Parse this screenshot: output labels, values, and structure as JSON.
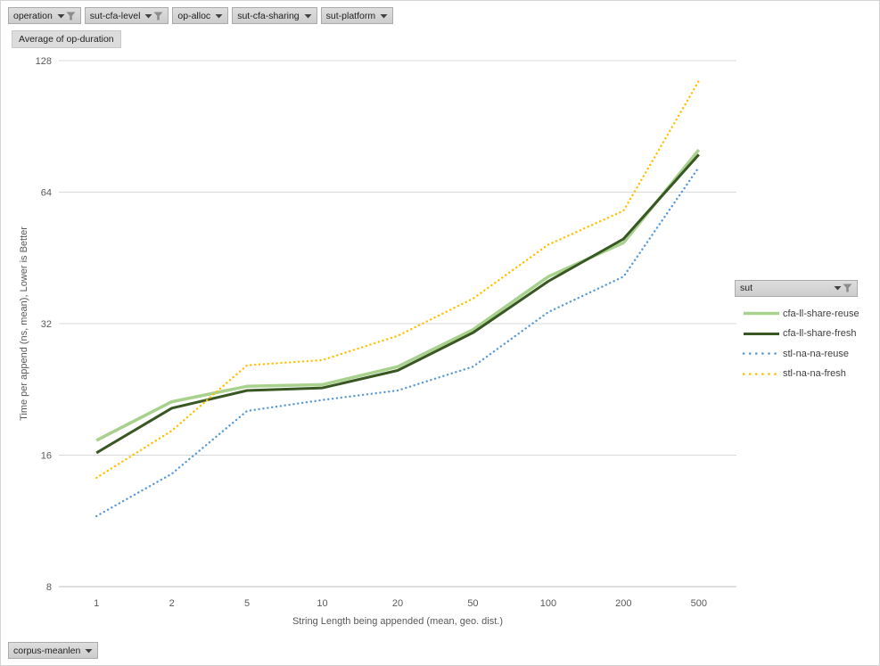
{
  "filters_top": [
    {
      "label": "operation",
      "filtered": true
    },
    {
      "label": "sut-cfa-level",
      "filtered": true
    },
    {
      "label": "op-alloc",
      "filtered": false
    },
    {
      "label": "sut-cfa-sharing",
      "filtered": false
    },
    {
      "label": "sut-platform",
      "filtered": false
    }
  ],
  "value_field": {
    "label": "Average of op-duration"
  },
  "axis_field": {
    "label": "corpus-meanlen"
  },
  "legend": {
    "field_label": "sut"
  },
  "colors": {
    "bg": "#ffffff",
    "frame-border": "#d3d3d3",
    "button-border": "#ababab",
    "gridline": "#d9d9d9",
    "axis-line": "#bfbfbf",
    "tick-text": "#595959",
    "legend-text": "#404040",
    "funnel-icon": "#8c8c8c",
    "arrow-icon": "#404040",
    "series-light-green": "#a9d18e",
    "series-dark-green": "#385723",
    "series-blue": "#5b9bd5",
    "series-yellow": "#ffc000"
  },
  "chart_data": {
    "type": "line",
    "title": "Average of op-duration",
    "categories": [
      "1",
      "2",
      "5",
      "10",
      "20",
      "50",
      "100",
      "200",
      "500"
    ],
    "series": [
      {
        "name": "cfa-ll-share-reuse",
        "color": "#a9d18e",
        "line_style": "solid",
        "stroke_width": 3.5,
        "values": [
          17.3,
          21.2,
          23.0,
          23.2,
          25.5,
          31.0,
          41.0,
          49.0,
          80.0
        ]
      },
      {
        "name": "cfa-ll-share-fresh",
        "color": "#385723",
        "line_style": "solid",
        "stroke_width": 3,
        "values": [
          16.2,
          20.5,
          22.5,
          22.8,
          25.0,
          30.5,
          40.0,
          50.0,
          78.0
        ]
      },
      {
        "name": "stl-na-na-reuse",
        "color": "#5b9bd5",
        "line_style": "dotted",
        "stroke_width": 2.4,
        "values": [
          11.6,
          14.5,
          20.2,
          21.4,
          22.5,
          25.5,
          34.0,
          41.0,
          73.0
        ]
      },
      {
        "name": "stl-na-na-fresh",
        "color": "#ffc000",
        "line_style": "dotted",
        "stroke_width": 2.4,
        "values": [
          14.2,
          18.2,
          25.7,
          26.4,
          30.0,
          36.5,
          48.5,
          58.0,
          115.0
        ]
      }
    ],
    "yticks": [
      8,
      16,
      32,
      64,
      128
    ],
    "ylim": [
      8,
      128
    ],
    "y_scale": "log2",
    "x_scale": "category",
    "ylabel": "Time per append (ns, mean), Lower is Better",
    "xlabel": "String Length being appended (mean, geo. dist.)",
    "legend_position": "right",
    "grid": "horizontal"
  }
}
